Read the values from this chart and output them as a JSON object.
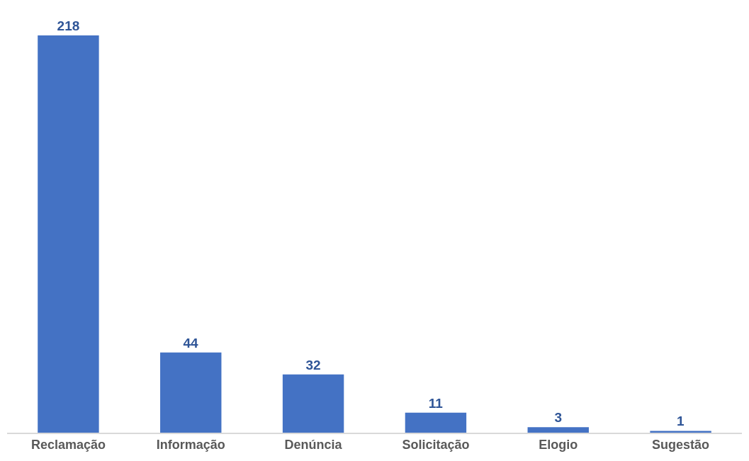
{
  "chart_data": {
    "type": "bar",
    "categories": [
      "Reclamação",
      "Informação",
      "Denúncia",
      "Solicitação",
      "Elogio",
      "Sugestão"
    ],
    "values": [
      218,
      44,
      32,
      11,
      3,
      1
    ],
    "color": "#4472c4",
    "data_labels": true
  }
}
